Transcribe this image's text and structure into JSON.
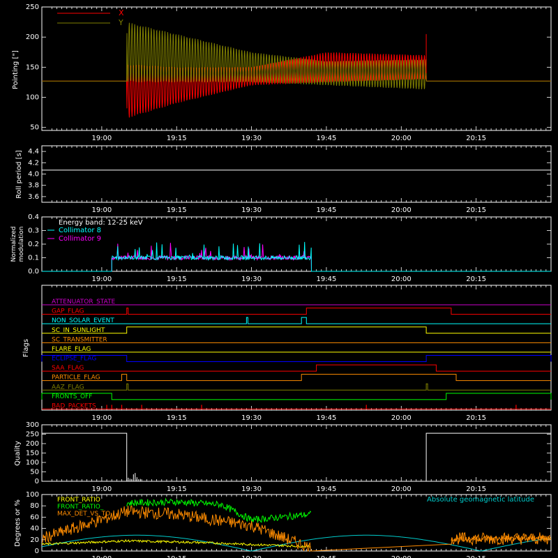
{
  "time_ticks": [
    "19:00",
    "19:15",
    "19:30",
    "19:45",
    "20:00",
    "20:15"
  ],
  "colors": {
    "background": "#000000",
    "axes": "#ffffff",
    "x_series": "#ff0000",
    "y_series": "#808000",
    "collimator8": "#00ffff",
    "collimator9": "#ff00ff",
    "front_ratio": "#ffff00",
    "front_ratio_hi": "#00ff00",
    "max_det": "#ff8c00",
    "geomag": "#00cccc"
  },
  "chart_data": [
    {
      "type": "line",
      "id": "pointing",
      "ylabel": "Pointing [\"]",
      "ylim": [
        45,
        250
      ],
      "yticks": [
        "50",
        "100",
        "150",
        "200",
        "250"
      ],
      "legend": [
        {
          "name": "X",
          "color": "#ff0000"
        },
        {
          "name": "Y",
          "color": "#808000"
        }
      ],
      "series": [
        {
          "name": "X",
          "x": [
            "18:48",
            "19:05",
            "19:05",
            "19:15",
            "19:30",
            "19:45",
            "20:05",
            "20:05",
            "20:30"
          ],
          "y_center": [
            127,
            127,
            110,
            120,
            135,
            150,
            150,
            127,
            127
          ],
          "y_halfwidth": [
            0,
            0,
            45,
            30,
            15,
            25,
            20,
            0,
            0
          ]
        },
        {
          "name": "Y",
          "x": [
            "18:48",
            "19:05",
            "19:05",
            "19:15",
            "19:30",
            "19:45",
            "20:05",
            "20:05",
            "20:30"
          ],
          "y_center": [
            127,
            127,
            175,
            165,
            150,
            140,
            138,
            127,
            127
          ],
          "y_halfwidth": [
            0,
            0,
            50,
            40,
            25,
            20,
            25,
            0,
            0
          ]
        }
      ]
    },
    {
      "type": "line",
      "id": "roll",
      "ylabel": "Roll period [s]",
      "ylim": [
        3.5,
        4.5
      ],
      "yticks": [
        "3.6",
        "3.8",
        "4.0",
        "4.2",
        "4.4"
      ],
      "series": [
        {
          "name": "Roll period",
          "value": 4.07
        }
      ]
    },
    {
      "type": "line",
      "id": "modulation",
      "ylabel": "Normalized modulation",
      "ylim": [
        0.0,
        0.4
      ],
      "yticks": [
        "0.0",
        "0.1",
        "0.2",
        "0.3",
        "0.4"
      ],
      "annotation": "Energy band: 12-25 keV",
      "legend": [
        {
          "name": "Collimator 8",
          "color": "#00ffff"
        },
        {
          "name": "Collimator 9",
          "color": "#ff00ff"
        }
      ],
      "range": [
        "19:02",
        "19:42"
      ],
      "baseline": 0.1
    },
    {
      "type": "line",
      "id": "flags",
      "ylabel": "Flags",
      "flags": [
        {
          "name": "ATTENUATOR_STATE",
          "color": "#cc00cc",
          "high": []
        },
        {
          "name": "GAP_FLAG",
          "color": "#ff0000",
          "high": [
            [
              "19:05",
              "19:05"
            ],
            [
              "19:41",
              "20:10"
            ]
          ]
        },
        {
          "name": "NON_SOLAR_EVENT",
          "color": "#00ffff",
          "high": [
            [
              "19:29",
              "19:29"
            ],
            [
              "19:40",
              "19:41"
            ]
          ]
        },
        {
          "name": "SC_IN_SUNLIGHT",
          "color": "#ffff00",
          "high": [
            [
              "19:05",
              "20:05"
            ]
          ]
        },
        {
          "name": "SC_TRANSMITTER",
          "color": "#ff8c00",
          "high": []
        },
        {
          "name": "FLARE_FLAG",
          "color": "#ffff00",
          "high": []
        },
        {
          "name": "ECLIPSE_FLAG",
          "color": "#0000ff",
          "high": [
            [
              "18:48",
              "19:05"
            ],
            [
              "20:05",
              "20:30"
            ]
          ]
        },
        {
          "name": "SAA_FLAG",
          "color": "#ff0000",
          "high": [
            [
              "19:43",
              "20:07"
            ]
          ]
        },
        {
          "name": "PARTICLE_FLAG",
          "color": "#ff8c00",
          "high": [
            [
              "19:04",
              "19:05"
            ],
            [
              "19:40",
              "20:11"
            ]
          ]
        },
        {
          "name": "AAZ_FLAG",
          "color": "#808000",
          "high": [
            [
              "19:05",
              "19:05"
            ],
            [
              "20:05",
              "20:05"
            ]
          ]
        },
        {
          "name": "FRONTS_OFF",
          "color": "#00ff00",
          "high": [
            [
              "18:48",
              "19:02"
            ],
            [
              "20:09",
              "20:30"
            ]
          ]
        },
        {
          "name": "BAD_PACKETS",
          "color": "#ff0000",
          "high": []
        }
      ],
      "bad_packet_times": [
        "19:01",
        "19:02",
        "19:04",
        "19:08",
        "19:20",
        "19:53",
        "20:23"
      ]
    },
    {
      "type": "line",
      "id": "quality",
      "ylabel": "Quality",
      "ylim": [
        0,
        300
      ],
      "yticks": [
        "0",
        "50",
        "100",
        "150",
        "200",
        "250",
        "300"
      ],
      "segments": [
        {
          "x": [
            "18:48",
            "19:05"
          ],
          "value": 255
        },
        {
          "x": [
            "19:05",
            "20:05"
          ],
          "value": 0
        },
        {
          "x": [
            "20:05",
            "20:30"
          ],
          "value": 255
        }
      ]
    },
    {
      "type": "line",
      "id": "ratios",
      "ylabel": "Degrees or %",
      "ylim": [
        0,
        100
      ],
      "yticks": [
        "0",
        "20",
        "40",
        "60",
        "80",
        "100"
      ],
      "legend": [
        {
          "name": "FRONT_RATIO",
          "color": "#ffff00"
        },
        {
          "name": "FRONT_RATIO_",
          "color": "#00ff00"
        },
        {
          "name": "MAX_DET_VS_TO",
          "color": "#ff8c00"
        }
      ],
      "annotation": "Absolute geomagnetic latitude",
      "series": [
        {
          "name": "FRONT_RATIO",
          "x": [
            "18:48",
            "19:05",
            "19:20",
            "19:35",
            "19:42"
          ],
          "y": [
            12,
            18,
            15,
            10,
            8
          ]
        },
        {
          "name": "FRONT_RATIO_",
          "x": [
            "19:05",
            "19:15",
            "19:24",
            "19:30",
            "19:42"
          ],
          "y": [
            85,
            87,
            82,
            55,
            65
          ]
        },
        {
          "name": "MAX_DET_VS_TO",
          "x": [
            "18:48",
            "19:05",
            "19:15",
            "19:30",
            "19:42",
            "20:10",
            "20:30"
          ],
          "y": [
            22,
            70,
            65,
            45,
            5,
            22,
            22
          ]
        },
        {
          "name": "Absolute geomagnetic latitude",
          "x": [
            "18:48",
            "19:10",
            "19:30",
            "19:42",
            "19:53",
            "20:10",
            "20:30"
          ],
          "y": [
            0,
            30,
            0,
            0,
            30,
            0,
            25
          ]
        }
      ]
    }
  ]
}
